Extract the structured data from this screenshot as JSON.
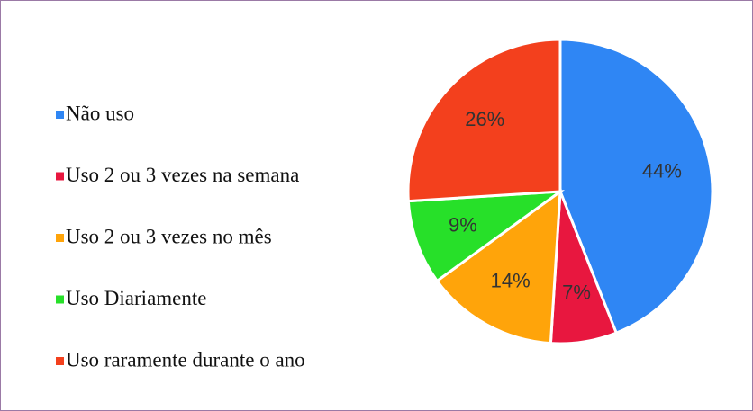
{
  "chart_data": {
    "type": "pie",
    "categories": [
      "Não uso",
      "Uso 2 ou 3 vezes na semana",
      "Uso 2 ou 3 vezes no mês",
      "Uso Diariamente",
      "Uso raramente durante o ano"
    ],
    "values": [
      44,
      7,
      14,
      9,
      26
    ],
    "value_labels": [
      "44%",
      "7%",
      "14%",
      "9%",
      "26%"
    ],
    "colors": [
      "#2f86f4",
      "#e8173f",
      "#ffa40a",
      "#27e029",
      "#f3401d"
    ],
    "legend": "left"
  }
}
